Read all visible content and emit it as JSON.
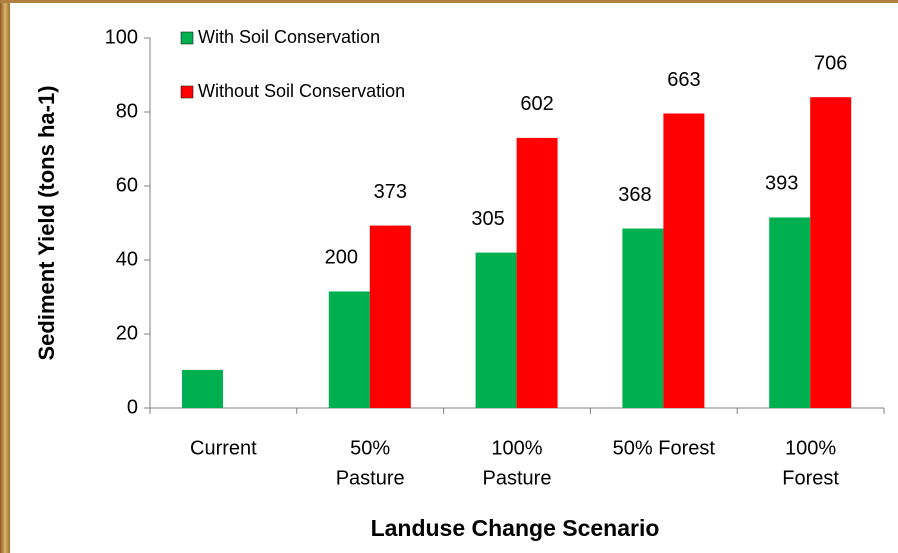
{
  "chart_data": {
    "type": "bar",
    "categories": [
      [
        "Current"
      ],
      [
        "50%",
        "Pasture"
      ],
      [
        "100%",
        "Pasture"
      ],
      [
        "50% Forest"
      ],
      [
        "100%",
        "Forest"
      ]
    ],
    "series": [
      {
        "name": "With Soil Conservation",
        "color": "#00b050",
        "values": [
          10.3,
          31.5,
          42,
          48.5,
          51.5
        ],
        "annotations": [
          null,
          "200",
          "305",
          "368",
          "393"
        ]
      },
      {
        "name": "Without Soil Conservation",
        "color": "#ff0000",
        "values": [
          null,
          49.3,
          73,
          79.6,
          84
        ],
        "annotations": [
          null,
          "373",
          "602",
          "663",
          "706"
        ]
      }
    ],
    "ylabel": "Sediment Yield (tons ha-1)",
    "xlabel": "Landuse Change Scenario",
    "ylim": [
      0,
      100
    ],
    "yticks": [
      0,
      20,
      40,
      60,
      80,
      100
    ],
    "grid": false
  }
}
